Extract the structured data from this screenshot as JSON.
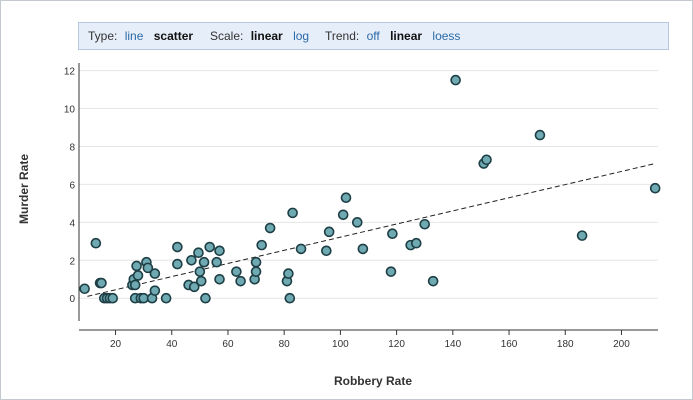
{
  "controls": {
    "type_label": "Type:",
    "type_options": [
      "line",
      "scatter"
    ],
    "type_active": "scatter",
    "scale_label": "Scale:",
    "scale_options": [
      "linear",
      "log"
    ],
    "scale_active": "linear",
    "trend_label": "Trend:",
    "trend_options": [
      "off",
      "linear",
      "loess"
    ],
    "trend_active": "linear"
  },
  "colors": {
    "marker_fill": "#6fa9b1",
    "marker_stroke": "#1f3f46",
    "trend_line": "#222222",
    "grid": "#e6e6e6",
    "control_bg": "#e6eef9",
    "link": "#2b6aa8"
  },
  "chart_data": {
    "type": "scatter",
    "xlabel": "Robbery Rate",
    "ylabel": "Murder Rate",
    "xlim": [
      7,
      213
    ],
    "ylim": [
      -1.2,
      12.4
    ],
    "xticks": [
      20,
      40,
      60,
      80,
      100,
      120,
      140,
      160,
      180,
      200
    ],
    "yticks": [
      0,
      2,
      4,
      6,
      8,
      10,
      12
    ],
    "grid": "horizontal",
    "trend": {
      "type": "linear",
      "x": [
        10,
        212
      ],
      "y": [
        0.1,
        7.1
      ]
    },
    "points": [
      {
        "x": 9,
        "y": 0.5
      },
      {
        "x": 13,
        "y": 2.9
      },
      {
        "x": 14.5,
        "y": 0.8
      },
      {
        "x": 15,
        "y": 0.8
      },
      {
        "x": 16,
        "y": 0
      },
      {
        "x": 17,
        "y": 0
      },
      {
        "x": 18,
        "y": 0
      },
      {
        "x": 19,
        "y": 0
      },
      {
        "x": 26,
        "y": 0.7
      },
      {
        "x": 26.5,
        "y": 1.0
      },
      {
        "x": 27,
        "y": 0
      },
      {
        "x": 27,
        "y": 0.7
      },
      {
        "x": 27.5,
        "y": 1.7
      },
      {
        "x": 28,
        "y": 1.2
      },
      {
        "x": 29,
        "y": 0
      },
      {
        "x": 30,
        "y": 0
      },
      {
        "x": 31,
        "y": 1.9
      },
      {
        "x": 31.5,
        "y": 1.6
      },
      {
        "x": 33,
        "y": 0
      },
      {
        "x": 34,
        "y": 0.4
      },
      {
        "x": 34,
        "y": 1.3
      },
      {
        "x": 38,
        "y": 0
      },
      {
        "x": 42,
        "y": 1.8
      },
      {
        "x": 42,
        "y": 2.7
      },
      {
        "x": 46,
        "y": 0.7
      },
      {
        "x": 47,
        "y": 2.0
      },
      {
        "x": 48,
        "y": 0.6
      },
      {
        "x": 49.5,
        "y": 2.4
      },
      {
        "x": 50,
        "y": 1.4
      },
      {
        "x": 50.5,
        "y": 0.9
      },
      {
        "x": 51.5,
        "y": 1.9
      },
      {
        "x": 52,
        "y": 0
      },
      {
        "x": 53.5,
        "y": 2.7
      },
      {
        "x": 56,
        "y": 1.9
      },
      {
        "x": 57,
        "y": 2.5
      },
      {
        "x": 57,
        "y": 1.0
      },
      {
        "x": 63,
        "y": 1.4
      },
      {
        "x": 64.5,
        "y": 0.9
      },
      {
        "x": 69.5,
        "y": 1.0
      },
      {
        "x": 70,
        "y": 1.4
      },
      {
        "x": 70,
        "y": 1.9
      },
      {
        "x": 72,
        "y": 2.8
      },
      {
        "x": 75,
        "y": 3.7
      },
      {
        "x": 81,
        "y": 0.9
      },
      {
        "x": 81.5,
        "y": 1.3
      },
      {
        "x": 82,
        "y": 0
      },
      {
        "x": 83,
        "y": 4.5
      },
      {
        "x": 86,
        "y": 2.6
      },
      {
        "x": 95,
        "y": 2.5
      },
      {
        "x": 96,
        "y": 3.5
      },
      {
        "x": 101,
        "y": 4.4
      },
      {
        "x": 102,
        "y": 5.3
      },
      {
        "x": 106,
        "y": 4.0
      },
      {
        "x": 108,
        "y": 2.6
      },
      {
        "x": 118,
        "y": 1.4
      },
      {
        "x": 118.5,
        "y": 3.4
      },
      {
        "x": 125,
        "y": 2.8
      },
      {
        "x": 127,
        "y": 2.9
      },
      {
        "x": 130,
        "y": 3.9
      },
      {
        "x": 133,
        "y": 0.9
      },
      {
        "x": 141,
        "y": 11.5
      },
      {
        "x": 151,
        "y": 7.1
      },
      {
        "x": 152,
        "y": 7.3
      },
      {
        "x": 171,
        "y": 8.6
      },
      {
        "x": 186,
        "y": 3.3
      },
      {
        "x": 212,
        "y": 5.8
      }
    ]
  }
}
